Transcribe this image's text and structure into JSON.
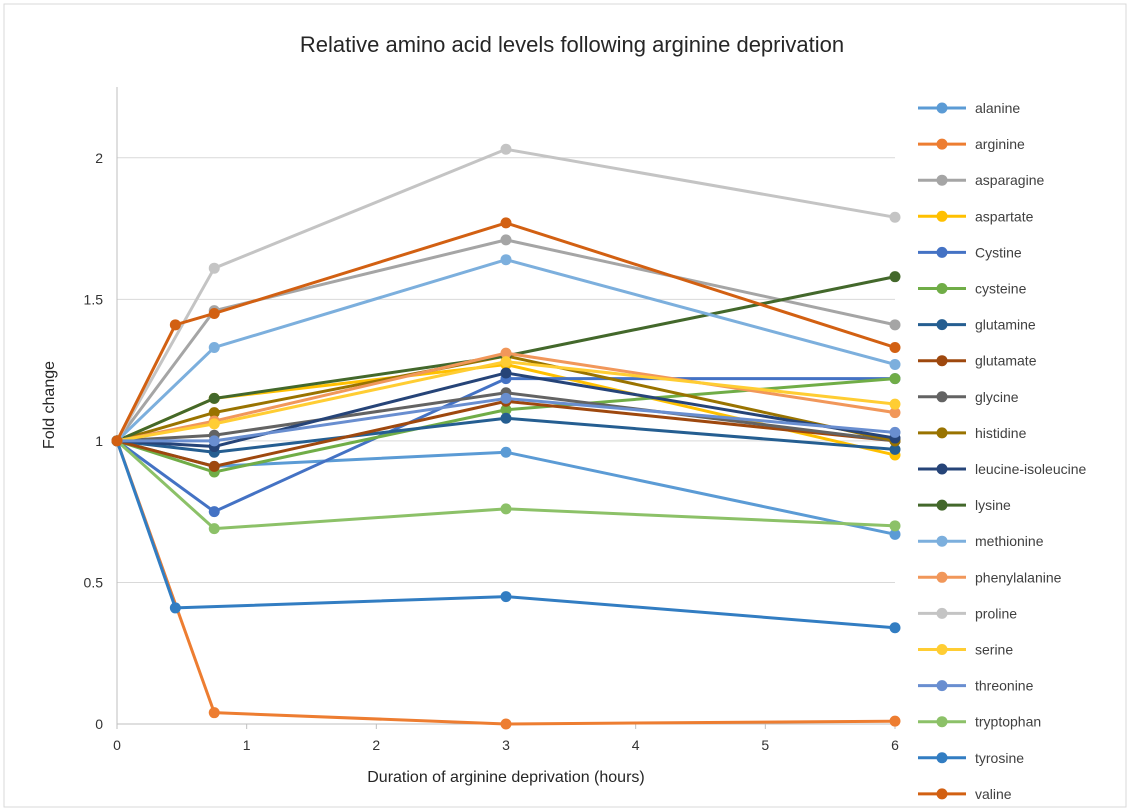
{
  "chart_data": {
    "type": "line",
    "title": "Relative amino acid levels following arginine deprivation",
    "xlabel": "Duration of arginine deprivation (hours)",
    "ylabel": "Fold change",
    "xlim": [
      0,
      6.2
    ],
    "ylim": [
      0,
      2.25
    ],
    "xticks": [
      0,
      1,
      2,
      3,
      4,
      5,
      6
    ],
    "yticks": [
      0,
      0.5,
      1,
      1.5,
      2
    ],
    "xtick_labels": [
      "0",
      "1",
      "2",
      "3",
      "4",
      "5",
      "6"
    ],
    "ytick_labels": [
      "0",
      "0.5",
      "1",
      "1.5",
      "2"
    ],
    "grid": true,
    "legend_position": "right",
    "series": [
      {
        "name": "alanine",
        "color": "#5B9BD5",
        "x": [
          0,
          0.75,
          3,
          6
        ],
        "y": [
          1.0,
          0.91,
          0.96,
          0.67
        ]
      },
      {
        "name": "arginine",
        "color": "#ED7D31",
        "x": [
          0,
          0.75,
          3,
          6
        ],
        "y": [
          1.0,
          0.04,
          0.0,
          0.01
        ]
      },
      {
        "name": "asparagine",
        "color": "#A5A5A5",
        "x": [
          0,
          0.75,
          3,
          6
        ],
        "y": [
          1.0,
          1.46,
          1.71,
          1.41
        ]
      },
      {
        "name": "aspartate",
        "color": "#FFC000",
        "x": [
          0,
          0.75,
          3,
          6
        ],
        "y": [
          1.0,
          1.15,
          1.27,
          0.95
        ]
      },
      {
        "name": "Cystine",
        "color": "#4472C4",
        "x": [
          0,
          0.75,
          3,
          6
        ],
        "y": [
          1.0,
          0.75,
          1.22,
          1.22
        ]
      },
      {
        "name": "cysteine",
        "color": "#70AD47",
        "x": [
          0,
          0.75,
          3,
          6
        ],
        "y": [
          1.0,
          0.89,
          1.11,
          1.22
        ]
      },
      {
        "name": "glutamine",
        "color": "#255E91",
        "x": [
          0,
          0.75,
          3,
          6
        ],
        "y": [
          1.0,
          0.96,
          1.08,
          0.97
        ]
      },
      {
        "name": "glutamate",
        "color": "#9E480E",
        "x": [
          0,
          0.75,
          3,
          6
        ],
        "y": [
          1.0,
          0.91,
          1.14,
          1.0
        ]
      },
      {
        "name": "glycine",
        "color": "#636363",
        "x": [
          0,
          0.75,
          3,
          6
        ],
        "y": [
          1.0,
          1.02,
          1.17,
          1.0
        ]
      },
      {
        "name": "histidine",
        "color": "#997300",
        "x": [
          0,
          0.75,
          3,
          6
        ],
        "y": [
          1.0,
          1.1,
          1.3,
          1.0
        ]
      },
      {
        "name": "leucine-isoleucine",
        "color": "#264478",
        "x": [
          0,
          0.75,
          3,
          6
        ],
        "y": [
          1.0,
          0.98,
          1.24,
          1.01
        ]
      },
      {
        "name": "lysine",
        "color": "#43682B",
        "x": [
          0,
          0.75,
          3,
          6
        ],
        "y": [
          1.0,
          1.15,
          1.3,
          1.58
        ]
      },
      {
        "name": "methionine",
        "color": "#7CAFDD",
        "x": [
          0,
          0.75,
          3,
          6
        ],
        "y": [
          1.0,
          1.33,
          1.64,
          1.27
        ]
      },
      {
        "name": "phenylalanine",
        "color": "#F1975A",
        "x": [
          0,
          0.75,
          3,
          6
        ],
        "y": [
          1.0,
          1.07,
          1.31,
          1.1
        ]
      },
      {
        "name": "proline",
        "color": "#C4C4C4",
        "x": [
          0,
          0.75,
          3,
          6
        ],
        "y": [
          1.0,
          1.61,
          2.03,
          1.79
        ]
      },
      {
        "name": "serine",
        "color": "#FFCD33",
        "x": [
          0,
          0.75,
          3,
          6
        ],
        "y": [
          1.0,
          1.06,
          1.28,
          1.13
        ]
      },
      {
        "name": "threonine",
        "color": "#698ED0",
        "x": [
          0,
          0.75,
          3,
          6
        ],
        "y": [
          1.0,
          1.0,
          1.15,
          1.03
        ]
      },
      {
        "name": "tryptophan",
        "color": "#8CC168",
        "x": [
          0,
          0.75,
          3,
          6
        ],
        "y": [
          1.0,
          0.69,
          0.76,
          0.7
        ]
      },
      {
        "name": "tyrosine",
        "color": "#327DC2",
        "x": [
          0,
          0.45,
          3,
          6
        ],
        "y": [
          1.0,
          0.41,
          0.45,
          0.34
        ]
      },
      {
        "name": "valine",
        "color": "#D26012",
        "x": [
          0,
          0.45,
          0.75,
          3,
          6
        ],
        "y": [
          1.0,
          1.41,
          1.45,
          1.77,
          1.33
        ]
      }
    ]
  }
}
